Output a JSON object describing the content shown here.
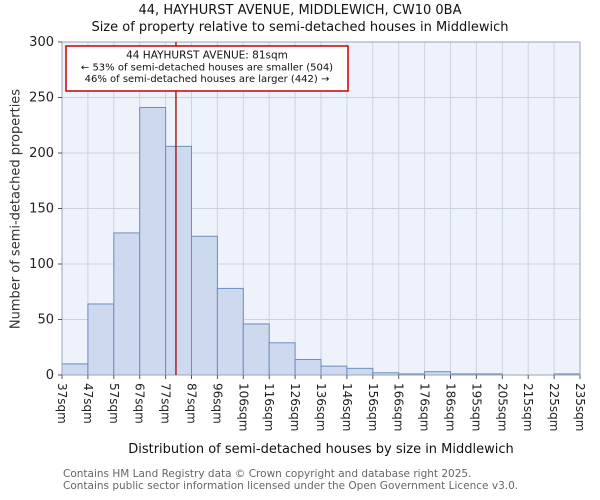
{
  "title": "44, HAYHURST AVENUE, MIDDLEWICH, CW10 0BA",
  "subtitle": "Size of property relative to semi-detached houses in Middlewich",
  "chart_data": {
    "type": "bar",
    "title": "44, HAYHURST AVENUE, MIDDLEWICH, CW10 0BA",
    "subtitle": "Size of property relative to semi-detached houses in Middlewich",
    "bin_labels": [
      "37sqm",
      "47sqm",
      "57sqm",
      "67sqm",
      "77sqm",
      "87sqm",
      "96sqm",
      "106sqm",
      "116sqm",
      "126sqm",
      "136sqm",
      "146sqm",
      "156sqm",
      "166sqm",
      "176sqm",
      "186sqm",
      "195sqm",
      "205sqm",
      "215sqm",
      "225sqm",
      "235sqm"
    ],
    "values": [
      10,
      64,
      128,
      241,
      206,
      125,
      78,
      46,
      29,
      14,
      8,
      6,
      2,
      1,
      3,
      1,
      1,
      0,
      0,
      1
    ],
    "ylabel": "Number of semi-detached properties",
    "xlabel": "Distribution of semi-detached houses by size in Middlewich",
    "ylim": [
      0,
      300
    ],
    "yticks": [
      0,
      50,
      100,
      150,
      200,
      250,
      300
    ],
    "grid": true,
    "marker": {
      "value_sqm": 81
    },
    "annotation": [
      "44 HAYHURST AVENUE: 81sqm",
      "← 53% of semi-detached houses are smaller (504)",
      "46% of semi-detached houses are larger (442) →"
    ],
    "colors": {
      "bar_fill": "#cdd9ef",
      "bar_stroke": "#6c8ebf",
      "marker": "#a51414",
      "annotation_border": "#cc0000",
      "grid": "#ccd3e0",
      "plot_bg": "#eef2fa",
      "axis": "#9aa4b8",
      "tick_text": "#222"
    }
  },
  "footer": [
    "Contains HM Land Registry data © Crown copyright and database right 2025.",
    "Contains public sector information licensed under the Open Government Licence v3.0."
  ]
}
